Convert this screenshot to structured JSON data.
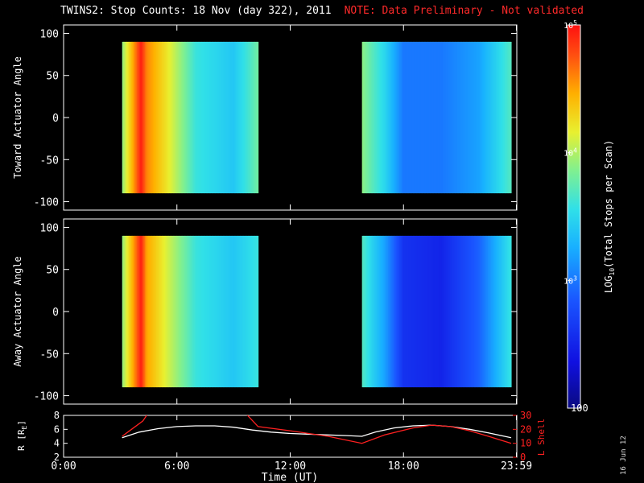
{
  "title": "TWINS2: Stop Counts: 18 Nov (day 322), 2011",
  "note": "NOTE: Data Preliminary - Not validated",
  "date_stamp": "16 Jun 12",
  "colors": {
    "background": "#000000",
    "axes": "#ffffff",
    "note": "#ff2a2a",
    "lshell": "#ff2020",
    "radius": "#ffffff"
  },
  "chart_data": [
    {
      "type": "heatmap",
      "panel": "toward",
      "ylabel": "Toward Actuator Angle",
      "ylim": [
        -110,
        110
      ],
      "yticks": [
        100,
        50,
        0,
        -50,
        -100
      ],
      "xlim": [
        0,
        24
      ],
      "coverage_hours": [
        [
          3.1,
          10.3
        ],
        [
          15.8,
          23.7
        ]
      ],
      "angle_range": [
        -90,
        90
      ],
      "log10_counts_profile": [
        {
          "t": 3.1,
          "v": 3.9
        },
        {
          "t": 3.6,
          "v": 4.4
        },
        {
          "t": 4.1,
          "v": 4.95
        },
        {
          "t": 4.4,
          "v": 4.6
        },
        {
          "t": 5.5,
          "v": 4.2
        },
        {
          "t": 7.0,
          "v": 3.6
        },
        {
          "t": 9.0,
          "v": 3.4
        },
        {
          "t": 10.3,
          "v": 3.8
        },
        {
          "t": 15.8,
          "v": 3.9
        },
        {
          "t": 17.0,
          "v": 3.5
        },
        {
          "t": 18.0,
          "v": 3.0
        },
        {
          "t": 20.0,
          "v": 3.0
        },
        {
          "t": 22.0,
          "v": 3.2
        },
        {
          "t": 23.7,
          "v": 3.7
        }
      ]
    },
    {
      "type": "heatmap",
      "panel": "away",
      "ylabel": "Away Actuator Angle",
      "xlabel": "Time (UT)",
      "ylim": [
        -110,
        110
      ],
      "yticks": [
        100,
        50,
        0,
        -50,
        -100
      ],
      "xlim": [
        0,
        24
      ],
      "coverage_hours": [
        [
          3.1,
          10.3
        ],
        [
          15.8,
          23.7
        ]
      ],
      "angle_range": [
        -90,
        90
      ],
      "log10_counts_profile": [
        {
          "t": 3.1,
          "v": 3.9
        },
        {
          "t": 3.6,
          "v": 4.4
        },
        {
          "t": 4.1,
          "v": 4.95
        },
        {
          "t": 4.4,
          "v": 4.5
        },
        {
          "t": 5.5,
          "v": 4.1
        },
        {
          "t": 7.0,
          "v": 3.6
        },
        {
          "t": 9.0,
          "v": 3.4
        },
        {
          "t": 10.3,
          "v": 3.6
        },
        {
          "t": 15.8,
          "v": 3.7
        },
        {
          "t": 17.0,
          "v": 3.2
        },
        {
          "t": 18.0,
          "v": 2.6
        },
        {
          "t": 20.0,
          "v": 2.5
        },
        {
          "t": 22.0,
          "v": 2.9
        },
        {
          "t": 23.7,
          "v": 3.6
        }
      ]
    },
    {
      "type": "line",
      "panel": "ephemeris",
      "ylabel_left": "R [Re]",
      "ylabel_right": "L Shell",
      "ylim_left": [
        2,
        8
      ],
      "yticks_left": [
        8,
        6,
        4,
        2
      ],
      "ylim_right": [
        0,
        30
      ],
      "yticks_right": [
        30,
        20,
        10,
        0
      ],
      "xlim": [
        0,
        24
      ],
      "xticks": [
        {
          "t": 0,
          "label": "0:00"
        },
        {
          "t": 6,
          "label": "6:00"
        },
        {
          "t": 12,
          "label": "12:00"
        },
        {
          "t": 18,
          "label": "18:00"
        },
        {
          "t": 23.98,
          "label": "23:59"
        }
      ],
      "series": [
        {
          "name": "R",
          "axis": "left",
          "x": [
            3.1,
            4.0,
            5.0,
            6.0,
            7.0,
            8.0,
            9.0,
            10.0,
            11.0,
            12.0,
            13.0,
            14.0,
            15.0,
            15.8,
            16.5,
            17.5,
            18.5,
            19.5,
            20.5,
            21.5,
            22.5,
            23.7
          ],
          "y": [
            4.8,
            5.6,
            6.1,
            6.4,
            6.5,
            6.5,
            6.3,
            5.9,
            5.6,
            5.4,
            5.3,
            5.2,
            5.1,
            5.0,
            5.6,
            6.2,
            6.5,
            6.6,
            6.4,
            6.0,
            5.5,
            4.8
          ]
        },
        {
          "name": "L Shell",
          "axis": "right",
          "x": [
            3.1,
            3.6,
            4.2,
            4.5
          ],
          "y": [
            15,
            20,
            26,
            32
          ]
        },
        {
          "name": "L Shell",
          "axis": "right",
          "x": [
            9.6,
            10.3,
            12.0,
            14.0,
            15.8,
            17.0,
            18.5,
            19.5,
            20.5,
            21.5,
            22.5,
            23.7
          ],
          "y": [
            32,
            22,
            19,
            15,
            10,
            16,
            21,
            23,
            22,
            19,
            15,
            10
          ]
        }
      ]
    }
  ],
  "colorbar": {
    "label": "LOG10(Total Stops per Scan)",
    "label_prefix": "LOG",
    "label_sub": "10",
    "label_suffix": "(Total Stops per Scan)",
    "range_log10": [
      2,
      5
    ],
    "ticks": [
      {
        "v": 5,
        "label": "10",
        "sup": "5"
      },
      {
        "v": 4,
        "label": "10",
        "sup": "4"
      },
      {
        "v": 3,
        "label": "10",
        "sup": "3"
      },
      {
        "v": 2,
        "label": "100",
        "sup": ""
      }
    ]
  },
  "ephem_labels": {
    "r_prefix": "R [R",
    "r_sub": "E",
    "r_suffix": "]",
    "lshell": "L Shell"
  }
}
